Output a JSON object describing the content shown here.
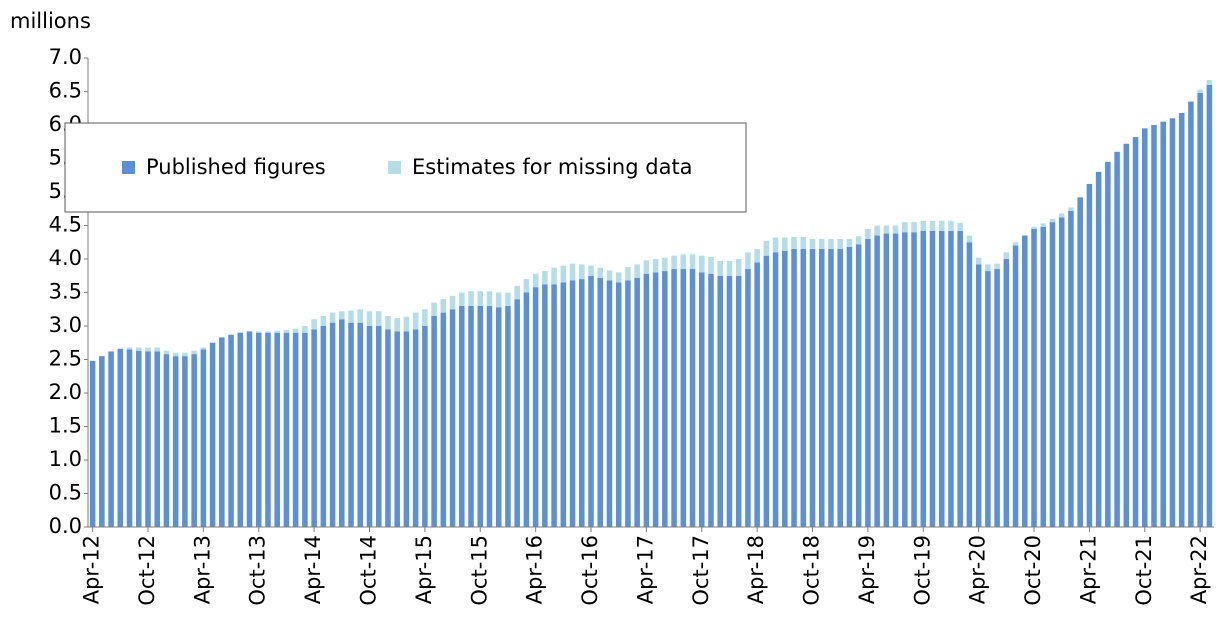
{
  "chart_data": {
    "type": "stacked-bar",
    "y_label": "millions",
    "categories": [
      "Apr-12",
      null,
      null,
      null,
      null,
      null,
      "Oct-12",
      null,
      null,
      null,
      null,
      null,
      "Apr-13",
      null,
      null,
      null,
      null,
      null,
      "Oct-13",
      null,
      null,
      null,
      null,
      null,
      "Apr-14",
      null,
      null,
      null,
      null,
      null,
      "Oct-14",
      null,
      null,
      null,
      null,
      null,
      "Apr-15",
      null,
      null,
      null,
      null,
      null,
      "Oct-15",
      null,
      null,
      null,
      null,
      null,
      "Apr-16",
      null,
      null,
      null,
      null,
      null,
      "Oct-16",
      null,
      null,
      null,
      null,
      null,
      "Apr-17",
      null,
      null,
      null,
      null,
      null,
      "Oct-17",
      null,
      null,
      null,
      null,
      null,
      "Apr-18",
      null,
      null,
      null,
      null,
      null,
      "Oct-18",
      null,
      null,
      null,
      null,
      null,
      "Apr-19",
      null,
      null,
      null,
      null,
      null,
      "Oct-19",
      null,
      null,
      null,
      null,
      null,
      "Apr-20",
      null,
      null,
      null,
      null,
      null,
      "Oct-20",
      null,
      null,
      null,
      null,
      null,
      "Apr-21",
      null,
      null,
      null,
      null,
      null,
      "Oct-21",
      null,
      null,
      null,
      null,
      null,
      "Apr-22",
      null
    ],
    "series": [
      {
        "name": "Published figures",
        "color": "#5b8fd6",
        "values": [
          2.48,
          2.55,
          2.62,
          2.66,
          2.65,
          2.63,
          2.62,
          2.62,
          2.58,
          2.55,
          2.55,
          2.58,
          2.65,
          2.75,
          2.83,
          2.87,
          2.9,
          2.92,
          2.9,
          2.9,
          2.9,
          2.9,
          2.9,
          2.9,
          2.95,
          3.0,
          3.05,
          3.1,
          3.05,
          3.05,
          3.0,
          3.0,
          2.95,
          2.92,
          2.92,
          2.95,
          3.0,
          3.15,
          3.2,
          3.25,
          3.3,
          3.3,
          3.3,
          3.3,
          3.28,
          3.3,
          3.4,
          3.5,
          3.58,
          3.62,
          3.62,
          3.65,
          3.68,
          3.7,
          3.75,
          3.72,
          3.68,
          3.65,
          3.68,
          3.72,
          3.78,
          3.8,
          3.82,
          3.85,
          3.85,
          3.85,
          3.8,
          3.78,
          3.75,
          3.75,
          3.75,
          3.85,
          3.95,
          4.05,
          4.1,
          4.12,
          4.15,
          4.15,
          4.15,
          4.15,
          4.15,
          4.15,
          4.18,
          4.22,
          4.3,
          4.35,
          4.38,
          4.38,
          4.4,
          4.4,
          4.42,
          4.42,
          4.42,
          4.42,
          4.42,
          4.25,
          3.92,
          3.82,
          3.85,
          4.0,
          4.2,
          4.35,
          4.45,
          4.48,
          4.55,
          4.62,
          4.72,
          4.92,
          5.12,
          5.3,
          5.45,
          5.6,
          5.72,
          5.82,
          5.95,
          6.0,
          6.05,
          6.1,
          6.18,
          6.35,
          6.48,
          6.6
        ]
      },
      {
        "name": "Estimates for missing data",
        "color": "#b4dde7",
        "values": [
          0,
          0,
          0,
          0,
          0.03,
          0.05,
          0.06,
          0.06,
          0.05,
          0.05,
          0.05,
          0.05,
          0.03,
          0,
          0,
          0,
          0,
          0,
          0.02,
          0.02,
          0.03,
          0.04,
          0.06,
          0.1,
          0.15,
          0.15,
          0.15,
          0.12,
          0.18,
          0.2,
          0.22,
          0.22,
          0.2,
          0.2,
          0.22,
          0.25,
          0.25,
          0.2,
          0.2,
          0.2,
          0.2,
          0.22,
          0.22,
          0.22,
          0.22,
          0.2,
          0.2,
          0.2,
          0.2,
          0.2,
          0.25,
          0.25,
          0.25,
          0.22,
          0.15,
          0.15,
          0.15,
          0.15,
          0.2,
          0.2,
          0.2,
          0.2,
          0.2,
          0.2,
          0.22,
          0.22,
          0.25,
          0.25,
          0.22,
          0.22,
          0.25,
          0.25,
          0.2,
          0.22,
          0.22,
          0.2,
          0.18,
          0.18,
          0.15,
          0.15,
          0.15,
          0.15,
          0.12,
          0.12,
          0.15,
          0.15,
          0.12,
          0.12,
          0.15,
          0.15,
          0.15,
          0.15,
          0.15,
          0.15,
          0.12,
          0.1,
          0.1,
          0.1,
          0.08,
          0.1,
          0.05,
          0,
          0.03,
          0.05,
          0.05,
          0.06,
          0.05,
          0,
          0,
          0,
          0,
          0,
          0,
          0,
          0,
          0,
          0,
          0,
          0,
          0,
          0.05,
          0.07
        ]
      }
    ],
    "ylim": [
      0,
      7
    ],
    "yticks": [
      {
        "value": 0,
        "label": "0.0"
      },
      {
        "value": 0.5,
        "label": "0.5"
      },
      {
        "value": 1,
        "label": "1.0"
      },
      {
        "value": 1.5,
        "label": "1.5"
      },
      {
        "value": 2,
        "label": "2.0"
      },
      {
        "value": 2.5,
        "label": "2.5"
      },
      {
        "value": 3,
        "label": "3.0"
      },
      {
        "value": 3.5,
        "label": "3.5"
      },
      {
        "value": 4,
        "label": "4.0"
      },
      {
        "value": 4.5,
        "label": "4.5"
      },
      {
        "value": 5,
        "label": "5.0"
      },
      {
        "value": 5.5,
        "label": "5.5"
      },
      {
        "value": 6,
        "label": "6.0"
      },
      {
        "value": 6.5,
        "label": "6.5"
      },
      {
        "value": 7,
        "label": "7.0"
      }
    ],
    "grid": false
  }
}
